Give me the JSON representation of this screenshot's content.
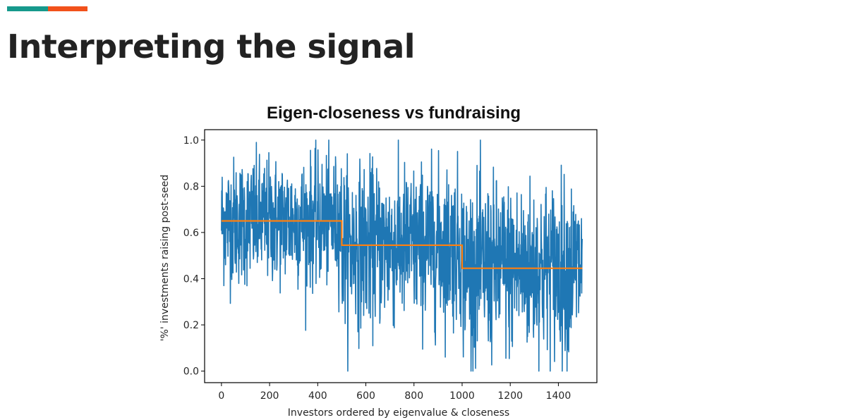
{
  "slide": {
    "title": "Interpreting the signal",
    "accent_colors": [
      "#16998c",
      "#f2511b"
    ]
  },
  "chart_data": {
    "type": "line",
    "title": "Eigen-closeness vs fundraising",
    "xlabel": "Investors ordered by eigenvalue & closeness",
    "ylabel": "'%' investments raising post-seed",
    "xlim": [
      -70,
      1560
    ],
    "ylim": [
      -0.05,
      1.045
    ],
    "xticks": [
      0,
      200,
      400,
      600,
      800,
      1000,
      1200,
      1400
    ],
    "yticks": [
      0.0,
      0.2,
      0.4,
      0.6,
      0.8,
      1.0
    ],
    "xtick_labels": [
      "0",
      "200",
      "400",
      "600",
      "800",
      "1000",
      "1200",
      "1400"
    ],
    "ytick_labels": [
      "0.0",
      "0.2",
      "0.4",
      "0.6",
      "0.8",
      "1.0"
    ],
    "grid": false,
    "series": [
      {
        "color": "#1f77b4",
        "n_points": 1500,
        "segments": [
          {
            "x_start": 0,
            "x_end": 500,
            "mean": 0.65,
            "spread": 0.16
          },
          {
            "x_start": 500,
            "x_end": 1000,
            "mean": 0.545,
            "spread": 0.2
          },
          {
            "x_start": 1000,
            "x_end": 1500,
            "mean": 0.445,
            "spread": 0.22
          }
        ]
      },
      {
        "color": "#ff7f0e",
        "x": [
          0,
          500,
          500,
          1000,
          1000,
          1500
        ],
        "y": [
          0.65,
          0.65,
          0.545,
          0.545,
          0.445,
          0.445
        ]
      }
    ]
  }
}
